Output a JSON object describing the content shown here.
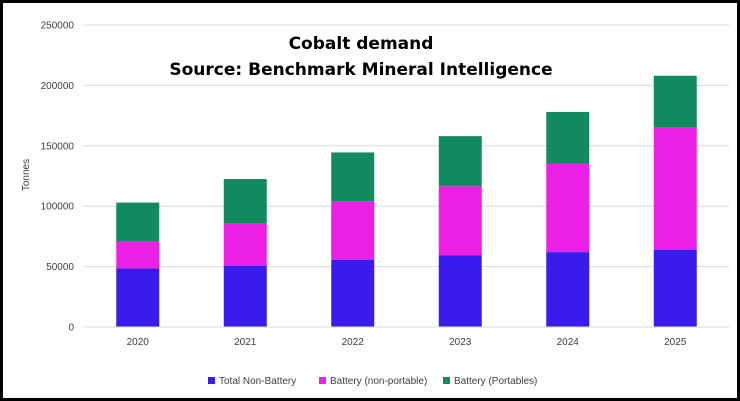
{
  "chart_data": {
    "type": "bar",
    "stacked": true,
    "title": "Cobalt demand",
    "subtitle": "Source: Benchmark Mineral Intelligence",
    "xlabel": "",
    "ylabel": "Tonnes",
    "ylim": [
      0,
      250000
    ],
    "yticks": [
      0,
      50000,
      100000,
      150000,
      200000,
      250000
    ],
    "ytick_labels": [
      "0",
      "50000",
      "100000",
      "150000",
      "200000",
      "250000"
    ],
    "grid": true,
    "legend_position": "bottom",
    "categories": [
      "2020",
      "2021",
      "2022",
      "2023",
      "2024",
      "2025"
    ],
    "series": [
      {
        "name": "Total Non-Battery",
        "color": "#3A1BEE",
        "values": [
          48500,
          50500,
          55500,
          59500,
          62000,
          64000
        ]
      },
      {
        "name": "Battery (non-portable)",
        "color": "#EC1FE4",
        "values": [
          22000,
          35000,
          48500,
          57000,
          73000,
          101000
        ]
      },
      {
        "name": "Battery (Portables)",
        "color": "#138B61",
        "values": [
          32500,
          37000,
          40500,
          41500,
          43000,
          43000
        ]
      }
    ]
  }
}
